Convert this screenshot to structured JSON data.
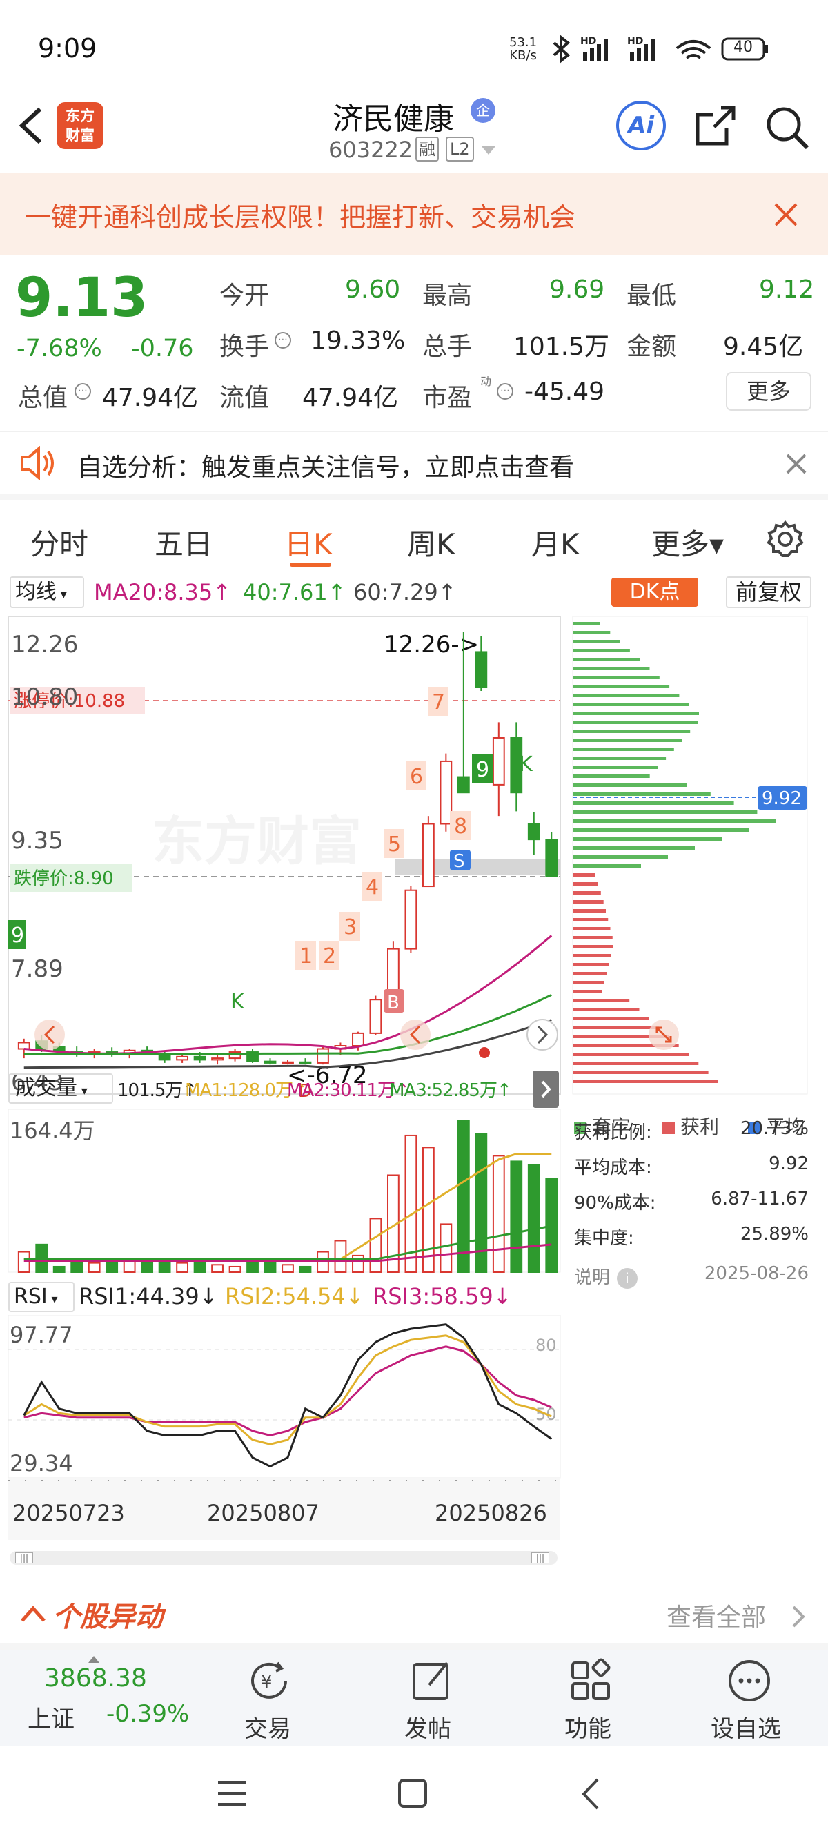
{
  "status": {
    "time": "9:09",
    "net_speed_top": "53.1",
    "net_speed_bottom": "KB/s",
    "battery": "40"
  },
  "header": {
    "logo_top": "东方",
    "logo_bottom": "财富",
    "name": "济民健康",
    "badge": "企",
    "code": "603222",
    "tag_rong": "融",
    "tag_level": "L2",
    "ai_label": "Ai"
  },
  "banner": {
    "text": "一键开通科创成长层权限！把握打新、交易机会"
  },
  "quote": {
    "price": "9.13",
    "change_pct": "-7.68%",
    "change": "-0.76",
    "open_label": "今开",
    "open": "9.60",
    "high_label": "最高",
    "high": "9.69",
    "low_label": "最低",
    "low": "9.12",
    "turnover_label": "换手",
    "turnover": "19.33%",
    "volume_label": "总手",
    "volume": "101.5万",
    "amount_label": "金额",
    "amount": "9.45亿",
    "mktcap_label": "总值",
    "mktcap": "47.94亿",
    "float_label": "流值",
    "float": "47.94亿",
    "pe_label": "市盈",
    "pe_sup": "动",
    "pe": "-45.49",
    "more": "更多"
  },
  "notice": {
    "text": "自选分析：触发重点关注信号，立即点击查看"
  },
  "tabs": [
    "分时",
    "五日",
    "日K",
    "周K",
    "月K",
    "更多▾"
  ],
  "active_tab": "日K",
  "kline": {
    "ma_selector": "均线",
    "ma20": "MA20:8.35↑",
    "ma40": "40:7.61↑",
    "ma60": "60:7.29↑",
    "dk_button": "DK点",
    "fq_button": "前复权",
    "y_top": "12.26",
    "y_2": "10.80",
    "y_3": "9.35",
    "y_4": "7.89",
    "y_bottom": "6.43",
    "limit_up": "涨停价:10.88",
    "limit_down": "跌停价:8.90",
    "high_note": "12.26->",
    "low_note": "<-6.72",
    "watermark": "东方财富",
    "chip_price": "9.92"
  },
  "volume": {
    "selector": "成交量",
    "v": "101.5万↑",
    "ma1": "MA1:128.0万↑",
    "ma2": "MA2:30.11万↑",
    "ma3": "MA3:52.85万↑",
    "max": "164.4万"
  },
  "rsi": {
    "selector": "RSI",
    "rsi1": "RSI1:44.39↓",
    "rsi2": "RSI2:54.54↓",
    "rsi3": "RSI3:58.59↓",
    "top": "97.77",
    "bottom": "29.34",
    "l80": "80",
    "l50": "50"
  },
  "dates": [
    "20250723",
    "20250807",
    "20250826"
  ],
  "chips": {
    "legend": [
      "套牢",
      "获利",
      "平均"
    ],
    "rows": [
      {
        "label": "获利比例:",
        "value": "20.73%"
      },
      {
        "label": "平均成本:",
        "value": "9.92"
      },
      {
        "label": "90%成本:",
        "value": "6.87-11.67"
      },
      {
        "label": "集中度:",
        "value": "25.89%"
      }
    ],
    "note_label": "说明",
    "date": "2025-08-26"
  },
  "movers": {
    "title": "个股异动",
    "link": "查看全部"
  },
  "bottom": {
    "index_value": "3868.38",
    "index_name": "上证",
    "index_change": "-0.39%",
    "items": [
      "交易",
      "发帖",
      "功能",
      "设自选"
    ]
  },
  "colors": {
    "up": "#d9362f",
    "down": "#2e9a2e",
    "accent": "#f0652a",
    "blue": "#3a7be0"
  },
  "chart_data": {
    "type": "candlestick",
    "price_axis": [
      6.43,
      7.89,
      9.35,
      10.8,
      12.26
    ],
    "ma": [
      {
        "name": "MA20",
        "value": 8.35
      },
      {
        "name": "40",
        "value": 7.61
      },
      {
        "name": "60",
        "value": 7.29
      }
    ],
    "last_close": 9.13,
    "period_high": 12.26,
    "period_low": 6.72,
    "limit_up": 10.88,
    "limit_down": 8.9,
    "avg_cost": 9.92,
    "volume_latest": "101.5万",
    "volume_max": "164.4万",
    "rsi": {
      "RSI1": 44.39,
      "RSI2": 54.54,
      "RSI3": 58.59,
      "range": [
        29.34,
        97.77
      ]
    },
    "dates": [
      "20250723",
      "20250807",
      "20250826"
    ]
  }
}
